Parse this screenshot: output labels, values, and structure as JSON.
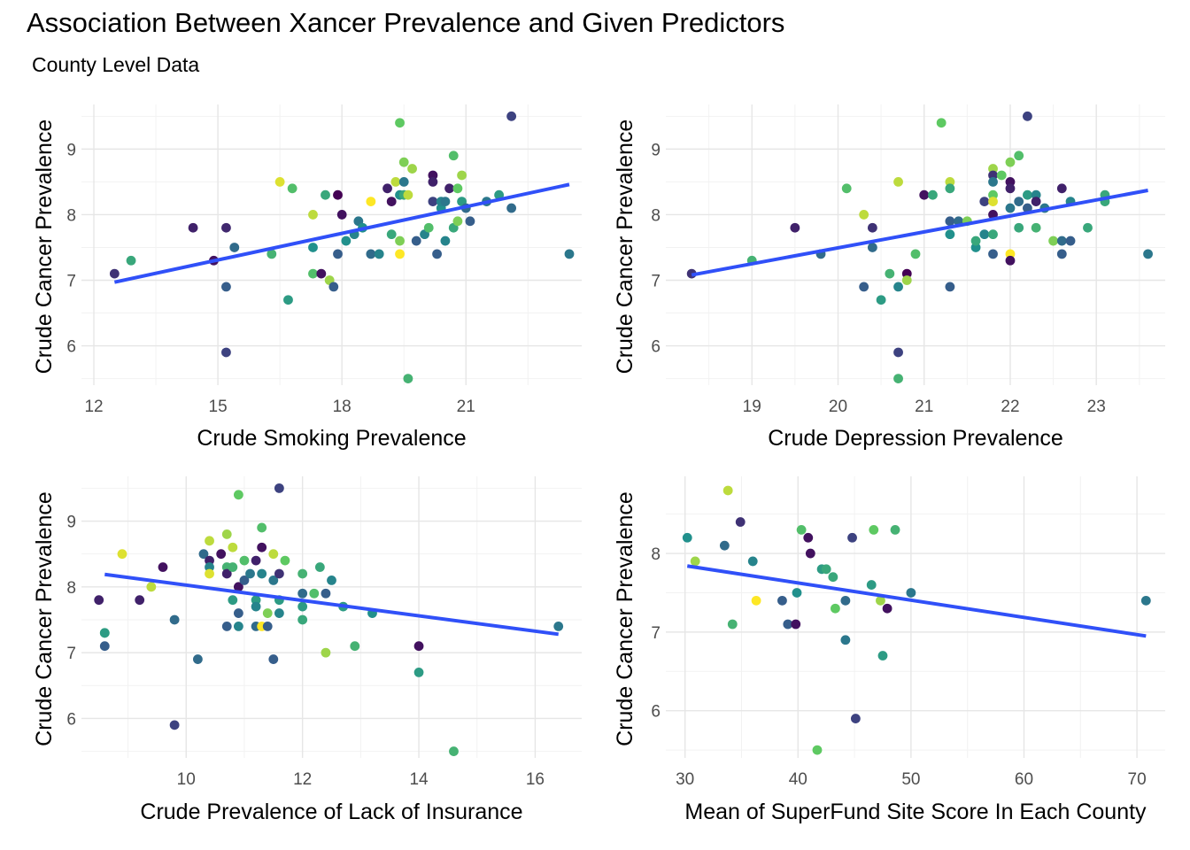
{
  "title": "Association Between Xancer Prevalence and Given Predictors",
  "subtitle": "County Level Data",
  "colors": {
    "fit_line": "#3050F8",
    "grid_major": "#e6e6e6",
    "grid_minor": "#f2f2f2",
    "palette": [
      "#440154",
      "#3b528b",
      "#21908c",
      "#5ec962",
      "#fde725"
    ]
  },
  "chart_data": [
    {
      "type": "scatter",
      "xlabel": "Crude Smoking Prevalence",
      "ylabel": "Crude Cancer Prevalence",
      "xticks": [
        12,
        15,
        18,
        21
      ],
      "yticks": [
        6,
        7,
        8,
        9
      ],
      "xlim": [
        11.7,
        23.8
      ],
      "ylim": [
        5.4,
        9.68
      ],
      "fit": [
        [
          12.5,
          6.97
        ],
        [
          23.5,
          8.46
        ]
      ],
      "points": [
        [
          12.5,
          7.1,
          0.15
        ],
        [
          12.9,
          7.3,
          0.6
        ],
        [
          14.4,
          7.8,
          0.1
        ],
        [
          14.9,
          7.3,
          0.05
        ],
        [
          15.2,
          7.8,
          0.12
        ],
        [
          15.2,
          6.9,
          0.3
        ],
        [
          15.2,
          5.9,
          0.2
        ],
        [
          15.4,
          7.5,
          0.35
        ],
        [
          16.3,
          7.4,
          0.65
        ],
        [
          16.5,
          8.5,
          0.95
        ],
        [
          16.8,
          8.4,
          0.7
        ],
        [
          16.7,
          6.7,
          0.55
        ],
        [
          17.3,
          8.0,
          0.9
        ],
        [
          17.3,
          7.5,
          0.5
        ],
        [
          17.3,
          7.1,
          0.7
        ],
        [
          17.5,
          7.1,
          0.05
        ],
        [
          17.6,
          8.3,
          0.6
        ],
        [
          17.7,
          7.0,
          0.85
        ],
        [
          17.8,
          6.9,
          0.3
        ],
        [
          17.9,
          8.3,
          0.0
        ],
        [
          18.0,
          8.0,
          0.05
        ],
        [
          17.9,
          7.4,
          0.3
        ],
        [
          18.1,
          7.6,
          0.5
        ],
        [
          18.3,
          7.7,
          0.45
        ],
        [
          18.4,
          7.9,
          0.4
        ],
        [
          18.5,
          7.8,
          0.5
        ],
        [
          18.7,
          7.4,
          0.35
        ],
        [
          18.7,
          8.2,
          1.0
        ],
        [
          18.9,
          7.4,
          0.45
        ],
        [
          19.1,
          8.4,
          0.1
        ],
        [
          19.2,
          7.7,
          0.6
        ],
        [
          19.2,
          8.2,
          0.05
        ],
        [
          19.3,
          8.5,
          0.9
        ],
        [
          19.4,
          7.6,
          0.8
        ],
        [
          19.4,
          8.3,
          0.5
        ],
        [
          19.4,
          7.4,
          1.0
        ],
        [
          19.5,
          8.3,
          0.6
        ],
        [
          19.4,
          9.4,
          0.75
        ],
        [
          19.5,
          8.5,
          0.4
        ],
        [
          19.5,
          8.8,
          0.8
        ],
        [
          19.6,
          8.3,
          0.9
        ],
        [
          19.6,
          5.5,
          0.65
        ],
        [
          19.7,
          8.7,
          0.85
        ],
        [
          19.8,
          7.6,
          0.3
        ],
        [
          20.0,
          7.7,
          0.45
        ],
        [
          20.1,
          7.8,
          0.7
        ],
        [
          20.2,
          8.6,
          0.05
        ],
        [
          20.2,
          8.5,
          0.1
        ],
        [
          20.2,
          8.2,
          0.2
        ],
        [
          20.3,
          7.4,
          0.3
        ],
        [
          20.4,
          8.1,
          0.5
        ],
        [
          20.4,
          8.2,
          0.45
        ],
        [
          20.5,
          7.6,
          0.45
        ],
        [
          20.5,
          8.2,
          0.4
        ],
        [
          20.6,
          8.4,
          0.1
        ],
        [
          20.7,
          7.8,
          0.6
        ],
        [
          20.7,
          8.9,
          0.7
        ],
        [
          20.8,
          8.4,
          0.75
        ],
        [
          20.8,
          7.9,
          0.8
        ],
        [
          20.9,
          8.6,
          0.85
        ],
        [
          20.9,
          8.2,
          0.55
        ],
        [
          21.0,
          8.1,
          0.35
        ],
        [
          21.1,
          7.9,
          0.3
        ],
        [
          21.5,
          8.2,
          0.4
        ],
        [
          21.8,
          8.3,
          0.55
        ],
        [
          22.1,
          9.5,
          0.2
        ],
        [
          22.1,
          8.1,
          0.35
        ],
        [
          23.5,
          7.4,
          0.4
        ]
      ]
    },
    {
      "type": "scatter",
      "xlabel": "Crude Depression Prevalence",
      "ylabel": "Crude Cancer Prevalence",
      "xticks": [
        19,
        20,
        21,
        22,
        23
      ],
      "yticks": [
        6,
        7,
        8,
        9
      ],
      "xlim": [
        18.0,
        23.8
      ],
      "ylim": [
        5.4,
        9.68
      ],
      "fit": [
        [
          18.3,
          7.08
        ],
        [
          23.6,
          8.37
        ]
      ],
      "points": [
        [
          18.3,
          7.1,
          0.15
        ],
        [
          19.0,
          7.3,
          0.65
        ],
        [
          19.5,
          7.8,
          0.1
        ],
        [
          19.8,
          7.4,
          0.35
        ],
        [
          20.1,
          8.4,
          0.7
        ],
        [
          20.3,
          6.9,
          0.3
        ],
        [
          20.3,
          8.0,
          0.9
        ],
        [
          20.4,
          7.8,
          0.15
        ],
        [
          20.4,
          7.5,
          0.35
        ],
        [
          20.5,
          6.7,
          0.55
        ],
        [
          20.6,
          7.1,
          0.65
        ],
        [
          20.7,
          8.5,
          0.9
        ],
        [
          20.7,
          6.9,
          0.45
        ],
        [
          20.7,
          5.9,
          0.2
        ],
        [
          20.7,
          5.5,
          0.65
        ],
        [
          20.8,
          7.1,
          0.0
        ],
        [
          20.8,
          7.0,
          0.85
        ],
        [
          20.9,
          7.4,
          0.7
        ],
        [
          21.0,
          8.3,
          0.05
        ],
        [
          21.1,
          8.3,
          0.6
        ],
        [
          21.2,
          9.4,
          0.75
        ],
        [
          21.3,
          8.5,
          0.9
        ],
        [
          21.3,
          8.4,
          0.6
        ],
        [
          21.3,
          7.7,
          0.5
        ],
        [
          21.3,
          7.9,
          0.3
        ],
        [
          21.3,
          6.9,
          0.3
        ],
        [
          21.4,
          7.9,
          0.35
        ],
        [
          21.5,
          7.9,
          0.8
        ],
        [
          21.6,
          7.5,
          0.5
        ],
        [
          21.6,
          7.6,
          0.6
        ],
        [
          21.7,
          8.2,
          0.2
        ],
        [
          21.7,
          7.7,
          0.45
        ],
        [
          21.8,
          8.7,
          0.85
        ],
        [
          21.8,
          8.6,
          0.15
        ],
        [
          21.8,
          8.5,
          0.4
        ],
        [
          21.8,
          8.3,
          0.75
        ],
        [
          21.8,
          8.2,
          0.95
        ],
        [
          21.8,
          8.0,
          0.05
        ],
        [
          21.8,
          7.7,
          0.6
        ],
        [
          21.8,
          7.4,
          0.3
        ],
        [
          21.9,
          8.6,
          0.75
        ],
        [
          22.0,
          8.8,
          0.8
        ],
        [
          22.0,
          8.5,
          0.05
        ],
        [
          22.0,
          8.4,
          0.1
        ],
        [
          22.0,
          8.1,
          0.4
        ],
        [
          22.0,
          7.4,
          1.0
        ],
        [
          22.0,
          7.3,
          0.05
        ],
        [
          22.1,
          8.9,
          0.7
        ],
        [
          22.1,
          8.2,
          0.35
        ],
        [
          22.1,
          7.8,
          0.6
        ],
        [
          22.2,
          9.5,
          0.2
        ],
        [
          22.2,
          8.3,
          0.55
        ],
        [
          22.2,
          8.1,
          0.3
        ],
        [
          22.3,
          8.3,
          0.45
        ],
        [
          22.3,
          8.2,
          0.1
        ],
        [
          22.3,
          7.8,
          0.65
        ],
        [
          22.4,
          8.1,
          0.4
        ],
        [
          22.5,
          7.6,
          0.8
        ],
        [
          22.6,
          8.4,
          0.1
        ],
        [
          22.6,
          7.6,
          0.35
        ],
        [
          22.6,
          7.4,
          0.3
        ],
        [
          22.7,
          7.6,
          0.3
        ],
        [
          22.7,
          8.2,
          0.45
        ],
        [
          22.9,
          7.8,
          0.6
        ],
        [
          23.1,
          8.3,
          0.6
        ],
        [
          23.1,
          8.2,
          0.6
        ],
        [
          23.6,
          7.4,
          0.4
        ]
      ]
    },
    {
      "type": "scatter",
      "xlabel": "Crude Prevalence of Lack of Insurance",
      "ylabel": "Crude Cancer Prevalence",
      "xticks": [
        10,
        12,
        14,
        16
      ],
      "yticks": [
        6,
        7,
        8,
        9
      ],
      "xlim": [
        8.2,
        16.8
      ],
      "ylim": [
        5.4,
        9.68
      ],
      "fit": [
        [
          8.6,
          8.19
        ],
        [
          16.4,
          7.28
        ]
      ],
      "points": [
        [
          8.5,
          7.8,
          0.1
        ],
        [
          8.6,
          7.3,
          0.7
        ],
        [
          8.6,
          7.3,
          0.55
        ],
        [
          8.6,
          7.1,
          0.3
        ],
        [
          8.9,
          8.5,
          0.95
        ],
        [
          9.2,
          7.8,
          0.1
        ],
        [
          9.4,
          8.0,
          0.9
        ],
        [
          9.6,
          8.3,
          0.05
        ],
        [
          9.8,
          7.5,
          0.35
        ],
        [
          9.8,
          5.9,
          0.2
        ],
        [
          10.2,
          6.9,
          0.35
        ],
        [
          10.3,
          8.5,
          0.35
        ],
        [
          10.4,
          8.7,
          0.9
        ],
        [
          10.4,
          8.4,
          0.1
        ],
        [
          10.4,
          8.3,
          0.45
        ],
        [
          10.4,
          8.2,
          0.95
        ],
        [
          10.6,
          8.5,
          0.05
        ],
        [
          10.7,
          8.8,
          0.85
        ],
        [
          10.7,
          8.3,
          0.65
        ],
        [
          10.7,
          8.2,
          0.1
        ],
        [
          10.7,
          7.4,
          0.3
        ],
        [
          10.8,
          8.6,
          0.9
        ],
        [
          10.8,
          8.3,
          0.65
        ],
        [
          10.8,
          7.8,
          0.55
        ],
        [
          10.9,
          9.4,
          0.75
        ],
        [
          10.9,
          8.0,
          0.05
        ],
        [
          10.9,
          7.6,
          0.3
        ],
        [
          10.9,
          7.4,
          0.45
        ],
        [
          11.0,
          8.1,
          0.3
        ],
        [
          11.0,
          8.4,
          0.7
        ],
        [
          11.1,
          8.2,
          0.4
        ],
        [
          11.2,
          8.4,
          0.1
        ],
        [
          11.2,
          7.8,
          0.55
        ],
        [
          11.2,
          7.7,
          0.45
        ],
        [
          11.2,
          7.4,
          0.35
        ],
        [
          11.3,
          8.9,
          0.7
        ],
        [
          11.3,
          8.6,
          0.05
        ],
        [
          11.3,
          8.2,
          0.45
        ],
        [
          11.3,
          7.4,
          1.0
        ],
        [
          11.4,
          7.6,
          0.8
        ],
        [
          11.4,
          7.4,
          0.3
        ],
        [
          11.5,
          8.5,
          0.9
        ],
        [
          11.5,
          8.1,
          0.4
        ],
        [
          11.5,
          6.9,
          0.3
        ],
        [
          11.6,
          9.5,
          0.2
        ],
        [
          11.6,
          8.2,
          0.15
        ],
        [
          11.6,
          7.8,
          0.55
        ],
        [
          11.6,
          7.6,
          0.45
        ],
        [
          11.7,
          8.4,
          0.75
        ],
        [
          12.0,
          8.2,
          0.65
        ],
        [
          12.0,
          7.9,
          0.35
        ],
        [
          12.0,
          7.7,
          0.55
        ],
        [
          12.0,
          7.5,
          0.6
        ],
        [
          12.2,
          7.9,
          0.7
        ],
        [
          12.3,
          8.3,
          0.6
        ],
        [
          12.4,
          7.9,
          0.3
        ],
        [
          12.4,
          7.0,
          0.85
        ],
        [
          12.5,
          8.1,
          0.45
        ],
        [
          12.7,
          7.7,
          0.55
        ],
        [
          12.9,
          7.1,
          0.65
        ],
        [
          13.2,
          7.6,
          0.5
        ],
        [
          14.0,
          7.1,
          0.05
        ],
        [
          14.0,
          6.7,
          0.55
        ],
        [
          14.6,
          5.5,
          0.65
        ],
        [
          16.4,
          7.4,
          0.4
        ]
      ]
    },
    {
      "type": "scatter",
      "xlabel": "Mean of SuperFund Site Score In Each County",
      "ylabel": "Crude Cancer Prevalence",
      "xticks": [
        30,
        40,
        50,
        60,
        70
      ],
      "yticks": [
        6,
        7,
        8
      ],
      "xlim": [
        28.3,
        72.5
      ],
      "ylim": [
        5.4,
        8.98
      ],
      "fit": [
        [
          30.2,
          7.84
        ],
        [
          70.8,
          6.95
        ]
      ],
      "points": [
        [
          30.2,
          8.2,
          0.5
        ],
        [
          30.9,
          7.9,
          0.85
        ],
        [
          33.5,
          8.1,
          0.35
        ],
        [
          33.8,
          8.8,
          0.9
        ],
        [
          34.9,
          8.4,
          0.15
        ],
        [
          34.2,
          7.1,
          0.65
        ],
        [
          36.0,
          7.9,
          0.45
        ],
        [
          36.3,
          7.4,
          1.0
        ],
        [
          38.6,
          7.4,
          0.3
        ],
        [
          39.1,
          7.1,
          0.3
        ],
        [
          39.8,
          7.1,
          0.05
        ],
        [
          39.9,
          7.5,
          0.5
        ],
        [
          40.3,
          8.3,
          0.7
        ],
        [
          40.9,
          8.2,
          0.05
        ],
        [
          41.1,
          8.0,
          0.05
        ],
        [
          41.7,
          5.5,
          0.75
        ],
        [
          42.1,
          7.8,
          0.55
        ],
        [
          42.5,
          7.8,
          0.6
        ],
        [
          43.1,
          7.7,
          0.6
        ],
        [
          43.3,
          7.3,
          0.75
        ],
        [
          44.2,
          7.4,
          0.35
        ],
        [
          44.2,
          6.9,
          0.4
        ],
        [
          44.8,
          8.2,
          0.2
        ],
        [
          45.1,
          5.9,
          0.2
        ],
        [
          46.5,
          7.6,
          0.55
        ],
        [
          46.7,
          8.3,
          0.75
        ],
        [
          47.3,
          7.4,
          0.85
        ],
        [
          47.5,
          6.7,
          0.55
        ],
        [
          47.9,
          7.3,
          0.05
        ],
        [
          48.6,
          8.3,
          0.65
        ],
        [
          50.0,
          7.5,
          0.4
        ],
        [
          70.8,
          7.4,
          0.4
        ]
      ]
    }
  ]
}
